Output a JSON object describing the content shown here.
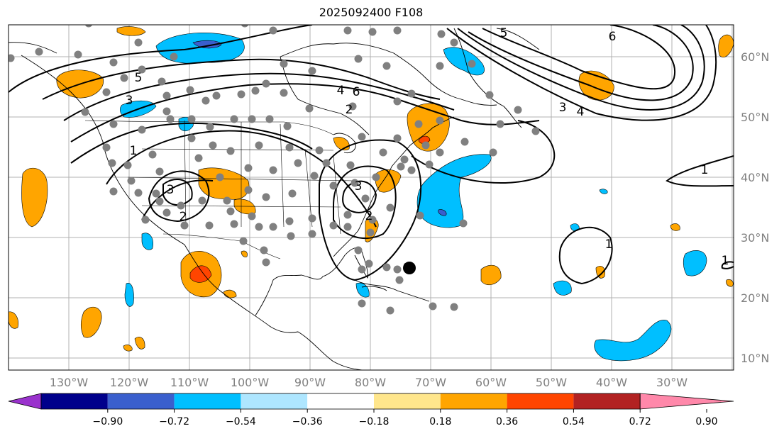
{
  "title": "2025092400 F108",
  "colors": {
    "dark_purple": "#9a32cd",
    "navy": "#00008b",
    "blue": "#3a5fcd",
    "deep_sky_blue": "#00bfff",
    "light_sky_blue": "#aee6ff",
    "white": "#ffffff",
    "light_yellow": "#ffe68c",
    "orange": "#ffa500",
    "orange_red": "#ff4500",
    "firebrick": "#b22222",
    "pink": "#ff88aa",
    "station_dot": "#808080",
    "contour": "#000000",
    "grid": "#b0b0b0"
  },
  "map": {
    "lon_labels": [
      "130°W",
      "120°W",
      "110°W",
      "100°W",
      "90°W",
      "80°W",
      "70°W",
      "60°W",
      "50°W",
      "40°W",
      "30°W"
    ],
    "lat_labels": [
      "60°N",
      "50°N",
      "40°N",
      "30°N",
      "20°N",
      "10°N"
    ],
    "contour_labels": [
      "5",
      "3",
      "1",
      "3",
      "2",
      "4",
      "6",
      "2",
      "5",
      "6",
      "3",
      "4",
      "3",
      "2",
      "1",
      "1",
      "1"
    ]
  },
  "colorbar": {
    "ticks": [
      "−0.90",
      "−0.72",
      "−0.54",
      "−0.36",
      "−0.18",
      "0.18",
      "0.36",
      "0.54",
      "0.72",
      "0.90"
    ]
  }
}
